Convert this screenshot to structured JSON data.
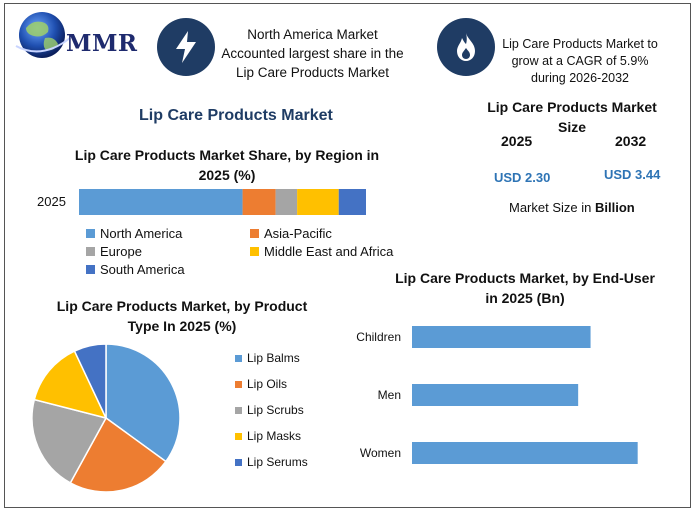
{
  "header": {
    "logo_text": "MMR",
    "info_box_1": [
      "North America Market",
      "Accounted largest share in the",
      "Lip Care Products Market"
    ],
    "info_box_2": [
      "Lip Care Products Market to",
      "grow at a CAGR of 5.9%",
      "during 2026-2032"
    ]
  },
  "main_title": "Lip Care Products Market",
  "market_size": {
    "title_line1": "Lip Care Products Market",
    "title_line2": "Size",
    "year_a": "2025",
    "year_b": "2032",
    "value_a": "USD 2.30",
    "value_b": "USD 3.44",
    "note_prefix": "Market Size in ",
    "note_bold": "Billion"
  },
  "colors": {
    "blue": "#5b9bd5",
    "orange": "#ed7d31",
    "gray": "#a5a5a5",
    "yellow": "#ffc000",
    "dark_blue": "#4472c4",
    "icon_bg": "#1f3c64",
    "accent_text": "#2e74b5"
  },
  "icons": [
    "globe-icon",
    "lightning-icon",
    "flame-icon"
  ],
  "chart_data": [
    {
      "type": "bar",
      "orientation": "horizontal-stacked",
      "title": "Lip Care Products Market Share, by Region in 2025 (%)",
      "title_lines": [
        "Lip Care Products Market Share, by Region in",
        "2025 (%)"
      ],
      "categories": [
        "2025"
      ],
      "series": [
        {
          "name": "North America",
          "values": [
            57
          ],
          "color": "#5b9bd5"
        },
        {
          "name": "Asia-Pacific",
          "values": [
            11.5
          ],
          "color": "#ed7d31"
        },
        {
          "name": "Europe",
          "values": [
            7.5
          ],
          "color": "#a5a5a5"
        },
        {
          "name": "Middle East and Africa",
          "values": [
            14.5
          ],
          "color": "#ffc000"
        },
        {
          "name": "South America",
          "values": [
            9.5
          ],
          "color": "#4472c4"
        }
      ],
      "xlim": [
        0,
        100
      ],
      "legend": "bottom"
    },
    {
      "type": "pie",
      "title": "Lip Care Products Market, by Product Type In 2025 (%)",
      "title_lines": [
        "Lip Care Products Market, by Product",
        "Type In 2025 (%)"
      ],
      "categories": [
        "Lip Balms",
        "Lip Oils",
        "Lip Scrubs",
        "Lip Masks",
        "Lip Serums"
      ],
      "values": [
        35,
        23,
        21,
        14,
        7
      ],
      "colors": [
        "#5b9bd5",
        "#ed7d31",
        "#a5a5a5",
        "#ffc000",
        "#4472c4"
      ],
      "legend": "right"
    },
    {
      "type": "bar",
      "orientation": "horizontal",
      "title": "Lip Care Products Market, by End-User in 2025 (Bn)",
      "title_lines": [
        "Lip Care Products Market, by End-User",
        "in 2025 (Bn)"
      ],
      "categories": [
        "Children",
        "Men",
        "Women"
      ],
      "values": [
        0.72,
        0.67,
        0.91
      ],
      "color": "#5b9bd5",
      "xlim": [
        0,
        1
      ]
    }
  ]
}
